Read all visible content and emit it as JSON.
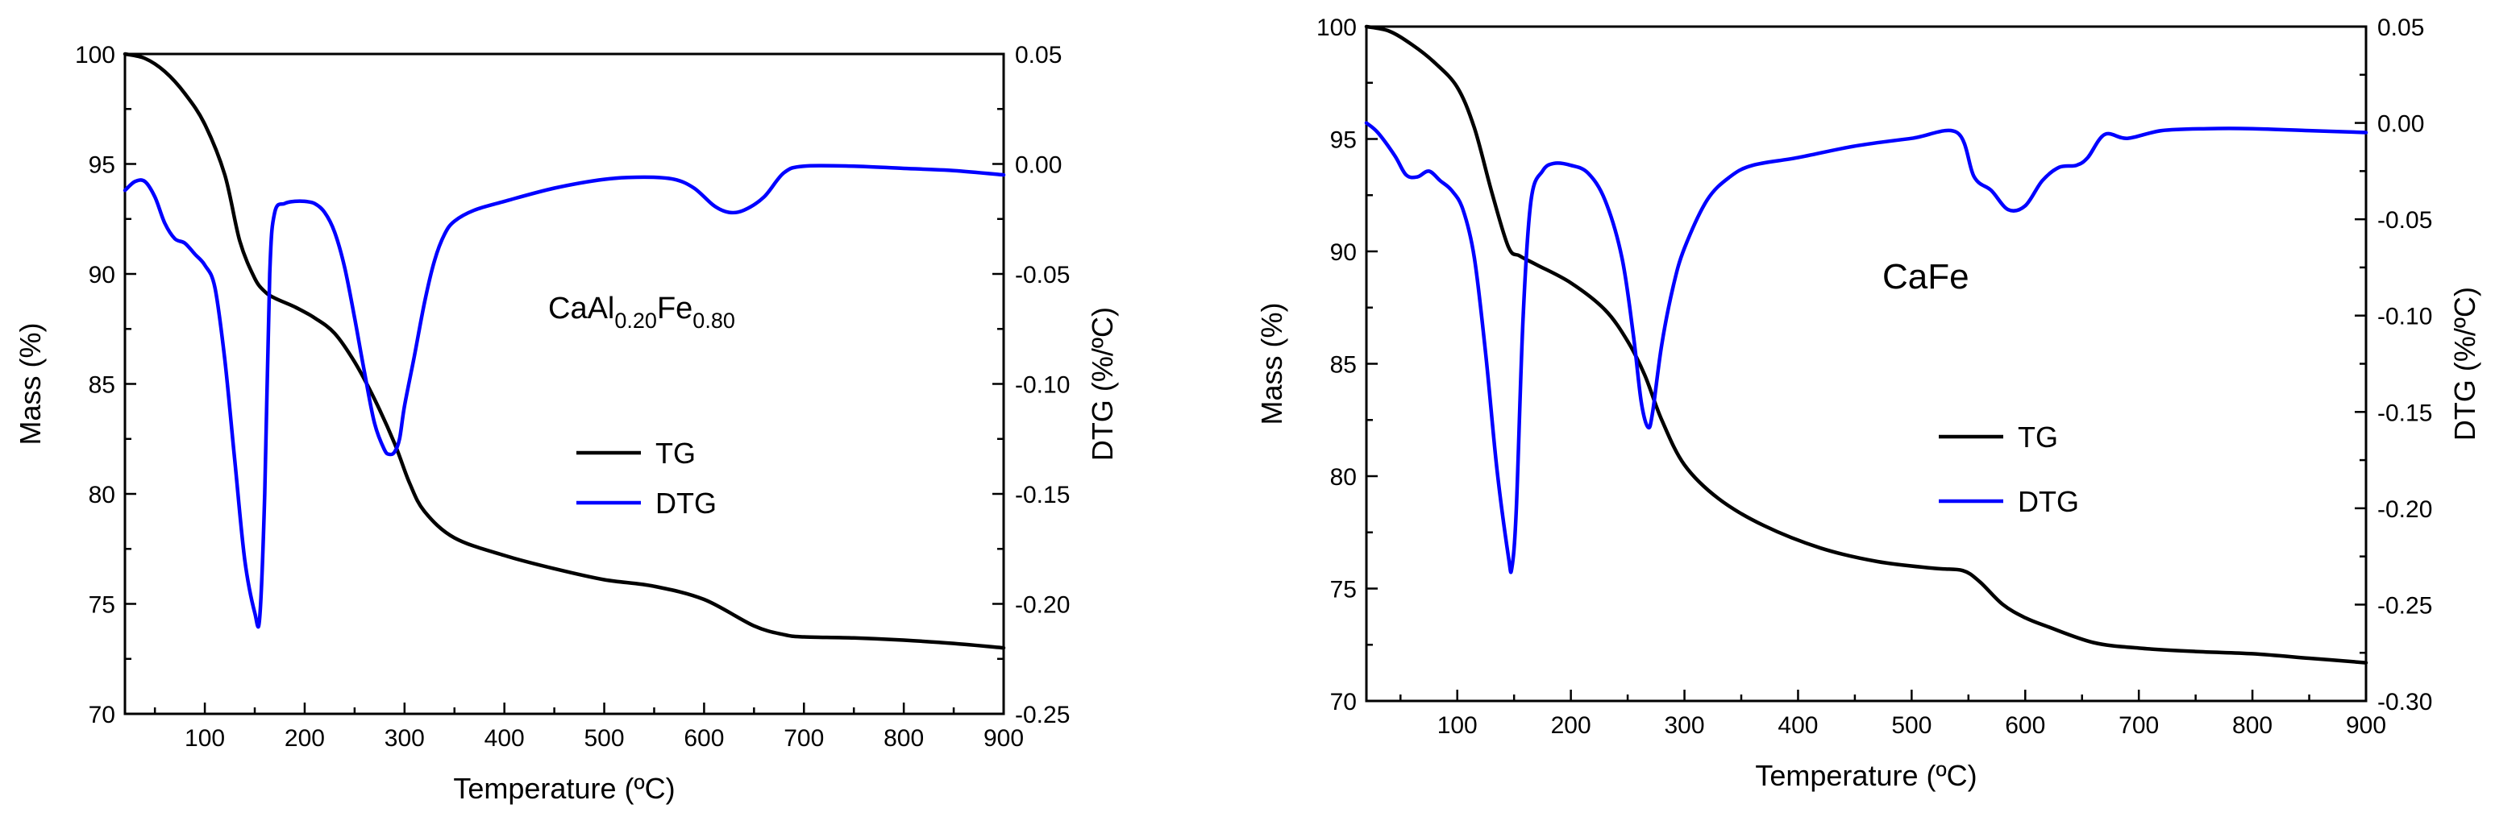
{
  "chart_data": [
    {
      "type": "line",
      "annotation": {
        "main": "CaAl",
        "sub1": "0.20",
        "mid": "Fe",
        "sub2": "0.80"
      },
      "xlabel": "Temperature (ºC)",
      "ylabel_left": "Mass (%)",
      "ylabel_right": "DTG (%/ºC)",
      "xlim": [
        20,
        900
      ],
      "ylim_left": [
        70,
        100
      ],
      "ylim_right": [
        -0.25,
        0.05
      ],
      "x_ticks": [
        100,
        200,
        300,
        400,
        500,
        600,
        700,
        800,
        900
      ],
      "y_left_ticks": [
        70,
        75,
        80,
        85,
        90,
        95,
        100
      ],
      "y_right_ticks": [
        0.05,
        0.0,
        -0.05,
        -0.1,
        -0.15,
        -0.2,
        -0.25
      ],
      "y_right_tick_labels": [
        "0.05",
        "0.00",
        "-0.05",
        "-0.10",
        "-0.15",
        "-0.20",
        "-0.25"
      ],
      "legend": [
        {
          "name": "TG",
          "color": "#000000"
        },
        {
          "name": "DTG",
          "color": "#0000ff"
        }
      ],
      "series": [
        {
          "name": "TG",
          "axis": "left",
          "color": "#000000",
          "x": [
            20,
            40,
            60,
            80,
            100,
            120,
            135,
            150,
            160,
            170,
            190,
            210,
            230,
            250,
            270,
            290,
            305,
            320,
            350,
            400,
            450,
            500,
            550,
            600,
            650,
            680,
            700,
            750,
            800,
            850,
            900
          ],
          "y": [
            100,
            99.8,
            99.2,
            98.2,
            96.8,
            94.5,
            91.5,
            89.8,
            89.2,
            88.9,
            88.5,
            88.0,
            87.3,
            86.0,
            84.3,
            82.3,
            80.5,
            79.2,
            78.0,
            77.2,
            76.6,
            76.1,
            75.8,
            75.2,
            74.0,
            73.6,
            73.5,
            73.45,
            73.35,
            73.2,
            73.0
          ]
        },
        {
          "name": "DTG",
          "axis": "right",
          "color": "#0000ff",
          "x": [
            20,
            30,
            40,
            50,
            60,
            70,
            80,
            90,
            100,
            110,
            120,
            130,
            140,
            150,
            155,
            160,
            165,
            170,
            180,
            190,
            200,
            210,
            220,
            230,
            240,
            250,
            260,
            270,
            280,
            285,
            290,
            295,
            300,
            310,
            320,
            330,
            340,
            350,
            370,
            400,
            450,
            500,
            540,
            570,
            590,
            610,
            625,
            640,
            660,
            680,
            700,
            750,
            800,
            850,
            900
          ],
          "y": [
            -0.012,
            -0.008,
            -0.008,
            -0.015,
            -0.027,
            -0.034,
            -0.036,
            -0.041,
            -0.046,
            -0.056,
            -0.089,
            -0.135,
            -0.18,
            -0.204,
            -0.206,
            -0.15,
            -0.05,
            -0.022,
            -0.018,
            -0.017,
            -0.017,
            -0.018,
            -0.022,
            -0.031,
            -0.047,
            -0.07,
            -0.095,
            -0.118,
            -0.13,
            -0.132,
            -0.131,
            -0.125,
            -0.11,
            -0.087,
            -0.063,
            -0.044,
            -0.032,
            -0.026,
            -0.021,
            -0.017,
            -0.011,
            -0.007,
            -0.006,
            -0.007,
            -0.011,
            -0.019,
            -0.022,
            -0.021,
            -0.015,
            -0.004,
            -0.001,
            -0.001,
            -0.002,
            -0.003,
            -0.005
          ]
        }
      ]
    },
    {
      "type": "line",
      "annotation": {
        "main": "CaFe"
      },
      "xlabel": "Temperature (ºC)",
      "ylabel_left": "Mass (%)",
      "ylabel_right": "DTG (%/ºC)",
      "xlim": [
        20,
        900
      ],
      "ylim_left": [
        70,
        100
      ],
      "ylim_right": [
        -0.3,
        0.05
      ],
      "x_ticks": [
        100,
        200,
        300,
        400,
        500,
        600,
        700,
        800,
        900
      ],
      "y_left_ticks": [
        70,
        75,
        80,
        85,
        90,
        95,
        100
      ],
      "y_right_ticks": [
        0.05,
        0.0,
        -0.05,
        -0.1,
        -0.15,
        -0.2,
        -0.25,
        -0.3
      ],
      "y_right_tick_labels": [
        "0.05",
        "0.00",
        "-0.05",
        "-0.10",
        "-0.15",
        "-0.20",
        "-0.25",
        "-0.30"
      ],
      "legend": [
        {
          "name": "TG",
          "color": "#000000"
        },
        {
          "name": "DTG",
          "color": "#0000ff"
        }
      ],
      "series": [
        {
          "name": "TG",
          "axis": "left",
          "color": "#000000",
          "x": [
            20,
            40,
            60,
            80,
            100,
            115,
            130,
            145,
            155,
            170,
            200,
            230,
            250,
            265,
            280,
            300,
            330,
            370,
            420,
            470,
            520,
            545,
            560,
            580,
            600,
            620,
            660,
            700,
            750,
            800,
            850,
            900
          ],
          "y": [
            100,
            99.8,
            99.2,
            98.4,
            97.3,
            95.5,
            92.7,
            90.2,
            89.8,
            89.4,
            88.6,
            87.4,
            86.0,
            84.5,
            82.5,
            80.5,
            79.0,
            77.8,
            76.8,
            76.2,
            75.9,
            75.8,
            75.3,
            74.3,
            73.7,
            73.3,
            72.6,
            72.35,
            72.2,
            72.1,
            71.9,
            71.7
          ]
        },
        {
          "name": "DTG",
          "axis": "right",
          "color": "#0000ff",
          "x": [
            20,
            30,
            45,
            55,
            65,
            75,
            85,
            95,
            105,
            115,
            125,
            135,
            145,
            148,
            152,
            158,
            165,
            175,
            185,
            200,
            215,
            230,
            245,
            255,
            262,
            268,
            272,
            280,
            290,
            300,
            320,
            340,
            360,
            400,
            450,
            500,
            540,
            555,
            570,
            585,
            600,
            615,
            630,
            645,
            655,
            670,
            690,
            720,
            760,
            800,
            850,
            900
          ],
          "y": [
            0.0,
            -0.005,
            -0.017,
            -0.027,
            -0.028,
            -0.025,
            -0.03,
            -0.035,
            -0.045,
            -0.07,
            -0.12,
            -0.18,
            -0.225,
            -0.231,
            -0.2,
            -0.1,
            -0.04,
            -0.025,
            -0.021,
            -0.022,
            -0.026,
            -0.04,
            -0.07,
            -0.11,
            -0.145,
            -0.158,
            -0.15,
            -0.115,
            -0.085,
            -0.065,
            -0.04,
            -0.028,
            -0.022,
            -0.018,
            -0.012,
            -0.008,
            -0.005,
            -0.028,
            -0.035,
            -0.045,
            -0.043,
            -0.03,
            -0.023,
            -0.022,
            -0.018,
            -0.006,
            -0.008,
            -0.004,
            -0.003,
            -0.003,
            -0.004,
            -0.005
          ]
        }
      ]
    }
  ]
}
